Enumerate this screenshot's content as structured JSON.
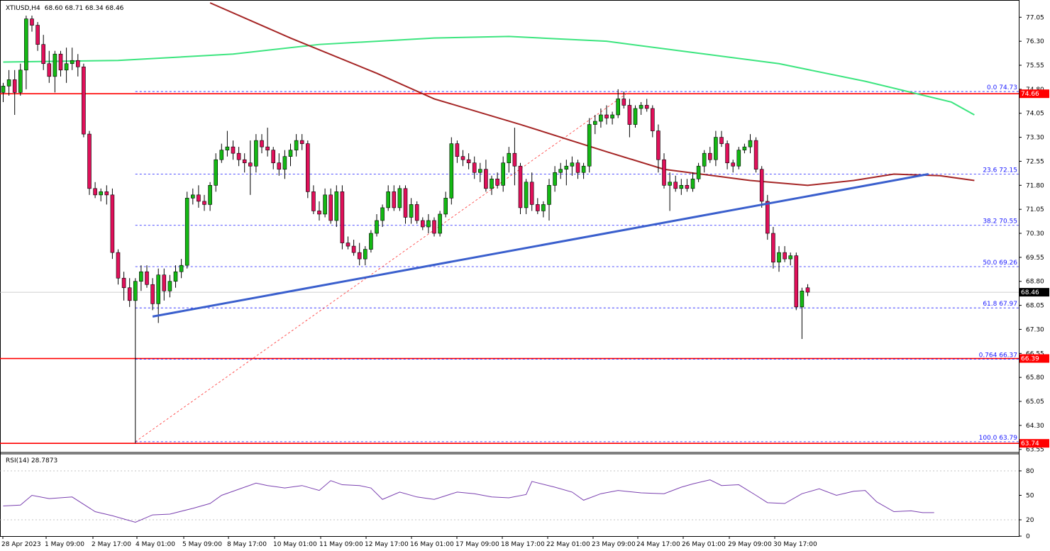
{
  "header": {
    "symbol": "XTIUSD,H4",
    "ohlc": "68.60 68.71 68.34 68.46"
  },
  "rsi": {
    "label": "RSI(14) 28.7873",
    "levels": [
      "80",
      "50",
      "20",
      "0"
    ]
  },
  "x_axis": {
    "labels": [
      "28 Apr 2023",
      "1 May 09:00",
      "2 May 17:00",
      "4 May 01:00",
      "5 May 09:00",
      "8 May 17:00",
      "10 May 01:00",
      "11 May 09:00",
      "12 May 17:00",
      "16 May 01:00",
      "17 May 09:00",
      "18 May 17:00",
      "22 May 01:00",
      "23 May 09:00",
      "24 May 17:00",
      "26 May 01:00",
      "29 May 09:00",
      "30 May 17:00"
    ]
  },
  "price_tags": {
    "current": "68.46",
    "resistance": "74.66",
    "support_1": "66.39",
    "support_2": "63.74"
  },
  "fib_labels": [
    "0.0 74.73",
    "23.6 72.15",
    "38.2 70.55",
    "50.0 69.26",
    "61.8 67.97",
    "0.764 66.37",
    "100.0 63.79"
  ],
  "colors": {
    "bull": "#14b814",
    "bear": "#e0105a",
    "ma_slow": "#3ce57f",
    "ma_fast": "#a52525",
    "trendline": "#3a5fcd",
    "horizontal": "#ff0000",
    "fib": "#1a1aff",
    "rsi_line": "#7a40b0"
  },
  "chart_data": {
    "type": "candlestick",
    "title": "XTIUSD,H4",
    "y_ticks": [
      77.05,
      76.3,
      75.55,
      74.8,
      74.05,
      73.3,
      72.55,
      71.8,
      71.05,
      70.3,
      69.55,
      68.8,
      68.05,
      67.3,
      66.55,
      65.8,
      65.05,
      64.3,
      63.55
    ],
    "ylim": [
      63.5,
      77.5
    ],
    "candles": [
      [
        74.7,
        75.0,
        74.4,
        74.9
      ],
      [
        74.9,
        75.4,
        74.6,
        75.1
      ],
      [
        75.1,
        75.4,
        74.0,
        74.7
      ],
      [
        74.7,
        75.6,
        74.6,
        75.4
      ],
      [
        75.4,
        77.1,
        74.8,
        77.0
      ],
      [
        77.0,
        77.1,
        76.6,
        76.8
      ],
      [
        76.8,
        76.9,
        76.0,
        76.2
      ],
      [
        76.2,
        76.5,
        75.4,
        75.6
      ],
      [
        75.6,
        76.0,
        75.0,
        75.2
      ],
      [
        75.2,
        76.0,
        74.7,
        75.9
      ],
      [
        75.9,
        76.0,
        75.2,
        75.4
      ],
      [
        75.4,
        76.1,
        75.0,
        75.6
      ],
      [
        75.6,
        76.1,
        75.4,
        75.7
      ],
      [
        75.7,
        75.9,
        75.2,
        75.5
      ],
      [
        75.5,
        75.6,
        73.3,
        73.4
      ],
      [
        73.4,
        73.5,
        71.5,
        71.7
      ],
      [
        71.7,
        71.9,
        71.4,
        71.5
      ],
      [
        71.5,
        71.7,
        71.3,
        71.6
      ],
      [
        71.6,
        71.8,
        71.2,
        71.5
      ],
      [
        71.5,
        71.7,
        69.5,
        69.7
      ],
      [
        69.7,
        69.8,
        68.7,
        68.9
      ],
      [
        68.9,
        69.1,
        68.2,
        68.6
      ],
      [
        68.6,
        68.9,
        68.0,
        68.2
      ],
      [
        68.2,
        68.9,
        63.74,
        68.8
      ],
      [
        68.8,
        69.3,
        68.5,
        69.1
      ],
      [
        69.1,
        69.3,
        68.6,
        68.7
      ],
      [
        68.7,
        68.9,
        67.9,
        68.1
      ],
      [
        68.1,
        69.2,
        67.5,
        69.0
      ],
      [
        69.0,
        69.2,
        68.2,
        68.5
      ],
      [
        68.5,
        69.0,
        68.3,
        68.8
      ],
      [
        68.8,
        69.3,
        68.6,
        69.1
      ],
      [
        69.1,
        69.5,
        68.9,
        69.3
      ],
      [
        69.3,
        71.6,
        69.2,
        71.4
      ],
      [
        71.4,
        71.7,
        71.2,
        71.5
      ],
      [
        71.5,
        71.8,
        71.1,
        71.3
      ],
      [
        71.3,
        71.5,
        71.0,
        71.2
      ],
      [
        71.2,
        71.9,
        71.0,
        71.8
      ],
      [
        71.8,
        72.8,
        71.6,
        72.6
      ],
      [
        72.6,
        73.1,
        72.5,
        72.9
      ],
      [
        72.9,
        73.5,
        72.7,
        73.0
      ],
      [
        73.0,
        73.2,
        72.6,
        72.8
      ],
      [
        72.8,
        73.0,
        72.4,
        72.6
      ],
      [
        72.6,
        72.8,
        72.2,
        72.5
      ],
      [
        72.5,
        73.2,
        71.5,
        72.4
      ],
      [
        72.4,
        73.4,
        72.2,
        73.2
      ],
      [
        73.2,
        73.4,
        72.8,
        73.0
      ],
      [
        73.0,
        73.6,
        72.7,
        72.9
      ],
      [
        72.9,
        73.0,
        72.3,
        72.5
      ],
      [
        72.5,
        72.8,
        72.1,
        72.3
      ],
      [
        72.3,
        72.9,
        72.0,
        72.7
      ],
      [
        72.7,
        73.1,
        72.4,
        72.9
      ],
      [
        72.9,
        73.4,
        72.7,
        73.2
      ],
      [
        73.2,
        73.4,
        72.9,
        73.1
      ],
      [
        73.1,
        73.2,
        71.4,
        71.6
      ],
      [
        71.6,
        71.8,
        70.9,
        71.0
      ],
      [
        71.0,
        71.3,
        70.7,
        70.9
      ],
      [
        70.9,
        71.7,
        70.8,
        71.5
      ],
      [
        71.5,
        71.7,
        70.6,
        70.7
      ],
      [
        70.7,
        71.8,
        70.5,
        71.6
      ],
      [
        71.6,
        71.8,
        69.8,
        70.0
      ],
      [
        70.0,
        70.2,
        69.8,
        69.9
      ],
      [
        69.9,
        70.1,
        69.6,
        69.7
      ],
      [
        69.7,
        70.0,
        69.3,
        69.5
      ],
      [
        69.5,
        69.9,
        69.3,
        69.8
      ],
      [
        69.8,
        70.4,
        69.7,
        70.3
      ],
      [
        70.3,
        70.9,
        70.2,
        70.7
      ],
      [
        70.7,
        71.2,
        70.5,
        71.1
      ],
      [
        71.1,
        71.8,
        71.0,
        71.6
      ],
      [
        71.6,
        71.8,
        71.0,
        71.1
      ],
      [
        71.1,
        71.8,
        71.0,
        71.7
      ],
      [
        71.7,
        71.8,
        70.6,
        70.8
      ],
      [
        70.8,
        71.4,
        70.6,
        71.2
      ],
      [
        71.2,
        71.3,
        70.6,
        70.7
      ],
      [
        70.7,
        70.8,
        70.4,
        70.5
      ],
      [
        70.5,
        70.9,
        70.3,
        70.7
      ],
      [
        70.7,
        70.8,
        70.2,
        70.3
      ],
      [
        70.3,
        71.0,
        70.2,
        70.9
      ],
      [
        70.9,
        71.6,
        70.8,
        71.4
      ],
      [
        71.4,
        73.3,
        71.2,
        73.1
      ],
      [
        73.1,
        73.2,
        72.5,
        72.7
      ],
      [
        72.7,
        72.9,
        72.4,
        72.6
      ],
      [
        72.6,
        72.8,
        72.3,
        72.5
      ],
      [
        72.5,
        72.7,
        72.0,
        72.2
      ],
      [
        72.2,
        72.5,
        71.9,
        72.3
      ],
      [
        72.3,
        72.6,
        71.6,
        71.7
      ],
      [
        71.7,
        72.1,
        71.5,
        72.0
      ],
      [
        72.0,
        72.2,
        71.7,
        71.8
      ],
      [
        71.8,
        72.7,
        71.6,
        72.5
      ],
      [
        72.5,
        73.0,
        72.2,
        72.8
      ],
      [
        72.8,
        73.6,
        71.8,
        72.4
      ],
      [
        72.4,
        72.5,
        70.9,
        71.1
      ],
      [
        71.1,
        72.0,
        70.9,
        71.9
      ],
      [
        71.9,
        72.2,
        71.0,
        71.2
      ],
      [
        71.2,
        71.4,
        70.9,
        71.0
      ],
      [
        71.0,
        71.3,
        70.8,
        71.2
      ],
      [
        71.2,
        72.0,
        70.7,
        71.8
      ],
      [
        71.8,
        72.4,
        71.6,
        72.2
      ],
      [
        72.2,
        72.5,
        72.0,
        72.3
      ],
      [
        72.3,
        72.6,
        71.8,
        72.4
      ],
      [
        72.4,
        72.7,
        72.1,
        72.5
      ],
      [
        72.5,
        72.6,
        72.0,
        72.2
      ],
      [
        72.2,
        72.5,
        72.0,
        72.4
      ],
      [
        72.4,
        73.9,
        72.2,
        73.7
      ],
      [
        73.7,
        74.0,
        73.4,
        73.8
      ],
      [
        73.8,
        74.2,
        73.6,
        74.0
      ],
      [
        74.0,
        74.3,
        73.7,
        73.9
      ],
      [
        73.9,
        74.1,
        73.7,
        74.0
      ],
      [
        74.0,
        74.8,
        73.9,
        74.5
      ],
      [
        74.5,
        74.73,
        74.2,
        74.3
      ],
      [
        74.3,
        74.5,
        73.3,
        73.7
      ],
      [
        73.7,
        74.3,
        73.6,
        74.2
      ],
      [
        74.2,
        74.4,
        74.0,
        74.3
      ],
      [
        74.3,
        74.5,
        74.1,
        74.2
      ],
      [
        74.2,
        74.3,
        73.3,
        73.5
      ],
      [
        73.5,
        73.7,
        72.2,
        72.6
      ],
      [
        72.6,
        72.8,
        71.7,
        71.8
      ],
      [
        71.8,
        72.2,
        71.0,
        71.9
      ],
      [
        71.9,
        72.1,
        71.6,
        71.7
      ],
      [
        71.7,
        72.0,
        71.5,
        71.8
      ],
      [
        71.8,
        72.0,
        71.6,
        71.7
      ],
      [
        71.7,
        72.2,
        71.6,
        72.0
      ],
      [
        72.0,
        72.5,
        71.9,
        72.4
      ],
      [
        72.4,
        72.9,
        72.2,
        72.8
      ],
      [
        72.8,
        73.0,
        72.5,
        72.6
      ],
      [
        72.6,
        73.5,
        72.4,
        73.3
      ],
      [
        73.3,
        73.5,
        73.0,
        73.1
      ],
      [
        73.1,
        73.2,
        72.3,
        72.5
      ],
      [
        72.5,
        72.6,
        72.2,
        72.4
      ],
      [
        72.4,
        73.0,
        72.3,
        72.9
      ],
      [
        72.9,
        73.1,
        72.8,
        73.0
      ],
      [
        73.0,
        73.4,
        72.8,
        73.2
      ],
      [
        73.2,
        73.3,
        72.2,
        72.3
      ],
      [
        72.3,
        72.4,
        71.1,
        71.3
      ],
      [
        71.3,
        71.5,
        70.1,
        70.3
      ],
      [
        70.3,
        70.5,
        69.2,
        69.4
      ],
      [
        69.4,
        69.9,
        69.1,
        69.7
      ],
      [
        69.7,
        69.9,
        69.4,
        69.5
      ],
      [
        69.5,
        69.7,
        69.3,
        69.6
      ],
      [
        69.6,
        69.7,
        67.9,
        68.0
      ],
      [
        68.0,
        68.6,
        67.0,
        68.5
      ],
      [
        68.6,
        68.71,
        68.34,
        68.46
      ]
    ],
    "ma_slow": [
      [
        0,
        75.65
      ],
      [
        20,
        75.7
      ],
      [
        40,
        75.9
      ],
      [
        55,
        76.2
      ],
      [
        75,
        76.4
      ],
      [
        88,
        76.45
      ],
      [
        105,
        76.3
      ],
      [
        120,
        75.95
      ],
      [
        135,
        75.6
      ],
      [
        150,
        75.05
      ],
      [
        165,
        74.4
      ],
      [
        169,
        74.0
      ]
    ],
    "ma_fast": [
      [
        36,
        77.5
      ],
      [
        50,
        76.4
      ],
      [
        65,
        75.3
      ],
      [
        75,
        74.5
      ],
      [
        90,
        73.7
      ],
      [
        105,
        72.85
      ],
      [
        115,
        72.3
      ],
      [
        130,
        71.95
      ],
      [
        140,
        71.8
      ],
      [
        148,
        71.95
      ],
      [
        155,
        72.15
      ],
      [
        163,
        72.1
      ],
      [
        169,
        71.95
      ]
    ],
    "trendline": {
      "from": [
        26,
        67.7
      ],
      "to": [
        161,
        72.15
      ]
    },
    "horizontal_levels": [
      74.66,
      66.39,
      63.74
    ],
    "fib": {
      "high": 74.73,
      "low": 63.79,
      "levels": [
        [
          0.0,
          74.73
        ],
        [
          23.6,
          72.15
        ],
        [
          38.2,
          70.55
        ],
        [
          50.0,
          69.26
        ],
        [
          61.8,
          67.97
        ],
        [
          76.4,
          66.37
        ],
        [
          100.0,
          63.79
        ]
      ]
    },
    "rsi": [
      [
        0,
        37
      ],
      [
        3,
        38
      ],
      [
        5,
        50
      ],
      [
        8,
        46
      ],
      [
        12,
        48
      ],
      [
        16,
        30
      ],
      [
        19,
        25
      ],
      [
        23,
        17
      ],
      [
        26,
        26
      ],
      [
        29,
        27
      ],
      [
        33,
        34
      ],
      [
        36,
        40
      ],
      [
        38,
        50
      ],
      [
        40,
        55
      ],
      [
        44,
        65
      ],
      [
        46,
        62
      ],
      [
        49,
        59
      ],
      [
        52,
        62
      ],
      [
        55,
        56
      ],
      [
        57,
        68
      ],
      [
        59,
        63
      ],
      [
        62,
        62
      ],
      [
        64,
        59
      ],
      [
        66,
        45
      ],
      [
        69,
        54
      ],
      [
        72,
        48
      ],
      [
        75,
        45
      ],
      [
        79,
        54
      ],
      [
        82,
        52
      ],
      [
        85,
        48
      ],
      [
        88,
        47
      ],
      [
        91,
        51
      ],
      [
        92,
        67
      ],
      [
        96,
        60
      ],
      [
        99,
        54
      ],
      [
        101,
        44
      ],
      [
        104,
        52
      ],
      [
        107,
        56
      ],
      [
        111,
        53
      ],
      [
        115,
        52
      ],
      [
        118,
        60
      ],
      [
        120,
        64
      ],
      [
        123,
        69
      ],
      [
        125,
        62
      ],
      [
        128,
        63
      ],
      [
        131,
        50
      ],
      [
        133,
        41
      ],
      [
        136,
        40
      ],
      [
        139,
        52
      ],
      [
        142,
        58
      ],
      [
        145,
        50
      ],
      [
        148,
        55
      ],
      [
        150,
        56
      ],
      [
        152,
        42
      ],
      [
        155,
        30
      ],
      [
        158,
        31
      ],
      [
        160,
        28.8
      ],
      [
        162,
        28.8
      ]
    ],
    "rsi_ylim": [
      0,
      100
    ],
    "rsi_ticks": [
      80,
      50,
      20,
      0
    ]
  }
}
